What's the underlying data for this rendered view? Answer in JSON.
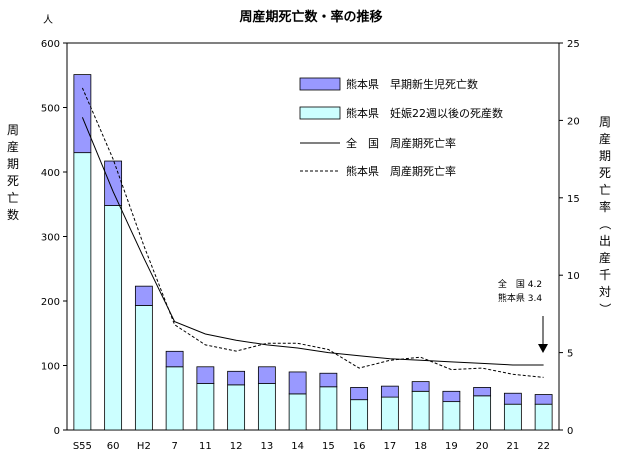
{
  "chart_data": {
    "type": "bar",
    "title": "周産期死亡数・率の推移",
    "categories": [
      "S55",
      "60",
      "H2",
      "7",
      "11",
      "12",
      "13",
      "14",
      "15",
      "16",
      "17",
      "18",
      "19",
      "20",
      "21",
      "22"
    ],
    "y_left": {
      "label": "周産期死亡数",
      "unit": "人",
      "range": [
        0,
        600
      ],
      "ticks": [
        "0",
        "100",
        "200",
        "300",
        "400",
        "500",
        "600"
      ]
    },
    "y_right": {
      "label": "周産期死亡率（出産千対）",
      "range": [
        0,
        25
      ],
      "ticks": [
        "0",
        "5",
        "10",
        "15",
        "20",
        "25"
      ]
    },
    "series": [
      {
        "name": "熊本県　妊娠22週以後の死産数",
        "kind": "bar",
        "color": "#ccffff",
        "values": [
          430,
          348,
          193,
          98,
          72,
          70,
          72,
          56,
          67,
          47,
          51,
          60,
          44,
          53,
          40,
          40
        ]
      },
      {
        "name": "熊本県　早期新生児死亡数",
        "kind": "bar-stacked",
        "color": "#9999ff",
        "values": [
          121,
          69,
          30,
          24,
          26,
          21,
          26,
          34,
          21,
          19,
          17,
          15,
          16,
          13,
          17,
          15
        ]
      },
      {
        "name": "全　国　周産期死亡率",
        "kind": "line",
        "style": "solid",
        "values": [
          20.2,
          15.4,
          11.1,
          7.0,
          6.2,
          5.8,
          5.5,
          5.3,
          5.0,
          4.8,
          4.6,
          4.5,
          4.4,
          4.3,
          4.2,
          4.2
        ]
      },
      {
        "name": "熊本県　周産期死亡率",
        "kind": "line",
        "style": "dashed",
        "values": [
          22.1,
          17.5,
          11.9,
          6.8,
          5.5,
          5.1,
          5.6,
          5.6,
          5.2,
          4.0,
          4.5,
          4.7,
          3.9,
          4.0,
          3.6,
          3.4
        ]
      }
    ],
    "annotation": {
      "lines": [
        "全　国 4.2",
        "熊本県 3.4"
      ]
    },
    "legend_position": "top-right",
    "grid": false
  }
}
